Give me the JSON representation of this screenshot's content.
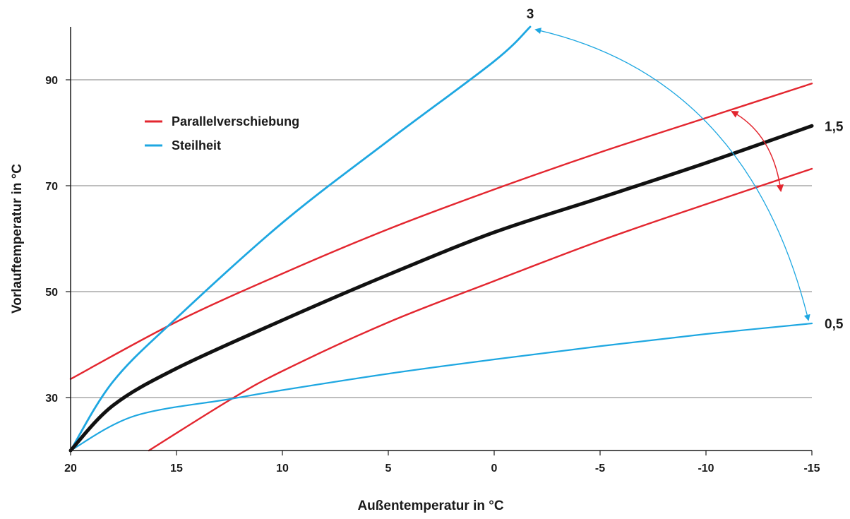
{
  "chart_data": {
    "type": "line",
    "xlabel": "Außentemperatur in °C",
    "ylabel": "Vorlauftemperatur in °C",
    "xlim": [
      20,
      -15
    ],
    "ylim": [
      20,
      100
    ],
    "x_ticks": [
      "20",
      "15",
      "10",
      "5",
      "0",
      "-5",
      "-10",
      "-15"
    ],
    "x_tick_values": [
      20,
      15,
      10,
      5,
      0,
      -5,
      -10,
      -15
    ],
    "y_ticks": [
      "30",
      "50",
      "70",
      "90"
    ],
    "y_tick_values": [
      30,
      50,
      70,
      90
    ],
    "grid": "horizontal",
    "legend": {
      "placement": "upper-left",
      "items": [
        {
          "label": "Parallelverschiebung",
          "color": "#e3262f"
        },
        {
          "label": "Steilheit",
          "color": "#1ea7e1"
        }
      ]
    },
    "series": [
      {
        "label": "1,5",
        "color": "#111111",
        "x": [
          20,
          18,
          15,
          10,
          5,
          0,
          -5,
          -10,
          -15
        ],
        "y": [
          20,
          28.5,
          35.5,
          44.6,
          53.2,
          61.2,
          67.7,
          74.3,
          81.3
        ]
      },
      {
        "color": "#e3262f",
        "x": [
          20,
          15,
          10,
          5,
          0,
          -5,
          -10,
          -15
        ],
        "y": [
          33.5,
          44.3,
          53.4,
          61.8,
          69.3,
          76.3,
          82.8,
          89.3
        ]
      },
      {
        "color": "#e3262f",
        "x": [
          16.3,
          12.5,
          10,
          5,
          0,
          -5,
          -10,
          -15
        ],
        "y": [
          20,
          29.5,
          35,
          44.2,
          52,
          59.6,
          66.5,
          73.2
        ]
      },
      {
        "label": "3",
        "color": "#1ea7e1",
        "x": [
          20,
          18,
          15,
          10,
          5,
          0,
          -1.7
        ],
        "y": [
          20,
          33,
          45,
          63,
          78.5,
          93.5,
          100
        ]
      },
      {
        "label": "0,5",
        "color": "#1ea7e1",
        "x": [
          20,
          17,
          12.5,
          10,
          5,
          0,
          -5,
          -10,
          -15
        ],
        "y": [
          20,
          26.5,
          29.7,
          31.4,
          34.5,
          37.2,
          39.7,
          42,
          44
        ]
      }
    ],
    "curve_labels": [
      "3",
      "1,5",
      "0,5"
    ]
  }
}
